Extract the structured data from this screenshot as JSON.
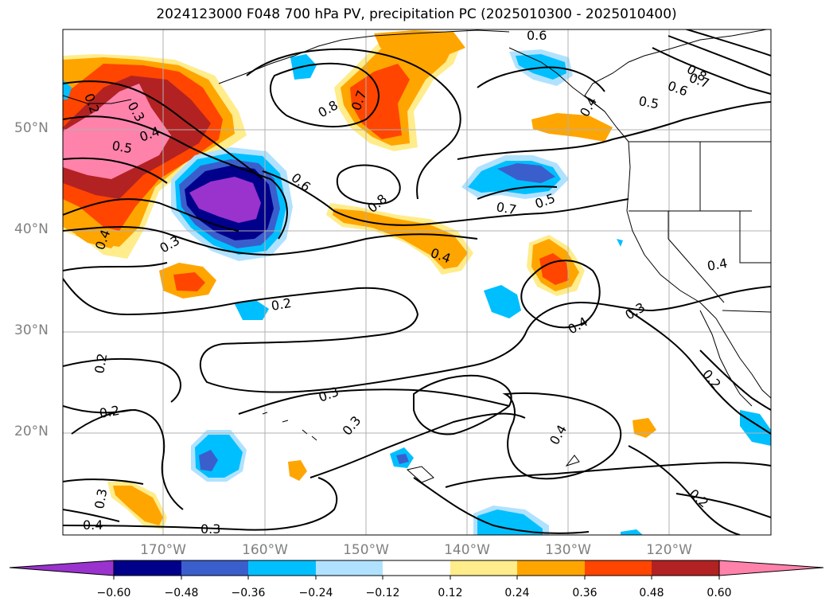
{
  "title": "2024123000 F048 700 hPa PV, precipitation PC (2025010300 - 2025010400)",
  "axes": {
    "lat_labels": [
      "50°N",
      "40°N",
      "30°N",
      "20°N"
    ],
    "lon_labels": [
      "170°W",
      "160°W",
      "150°W",
      "140°W",
      "130°W",
      "120°W"
    ],
    "lon_range": [
      "180°W",
      "110°W"
    ],
    "lat_range": [
      "10°N",
      "60°N"
    ],
    "grid": true
  },
  "colorbar": {
    "ticks": [
      "−0.60",
      "−0.48",
      "−0.36",
      "−0.24",
      "−0.12",
      "0.12",
      "0.24",
      "0.36",
      "0.48",
      "0.60"
    ],
    "colors": [
      "#9a32cd",
      "#00008b",
      "#3a5fcd",
      "#00bfff",
      "#b0e2ff",
      "#ffffff",
      "#ffec8b",
      "#ffa500",
      "#ff4500",
      "#b22222",
      "#ff82ab"
    ],
    "extend": "both"
  },
  "contour_labels": [
    "0.6",
    "0.8",
    "0.7",
    "0.8",
    "0.6",
    "0.5",
    "0.4",
    "0.5",
    "0.3",
    "0.4",
    "0.7",
    "0.6",
    "0.8",
    "0.7",
    "0.5",
    "0.4",
    "0.3",
    "0.4",
    "0.4",
    "0.2",
    "0.3",
    "0.4",
    "0.4",
    "0.3",
    "0.2",
    "0.2",
    "0.3",
    "0.3",
    "0.4",
    "0.2",
    "0.3",
    "0.2",
    "0.2"
  ]
}
